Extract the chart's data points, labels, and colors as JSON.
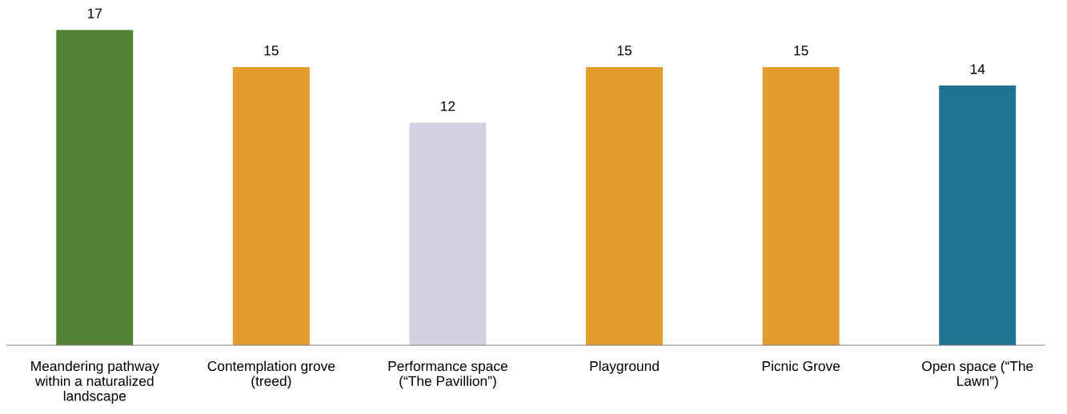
{
  "chart_data": {
    "type": "bar",
    "categories": [
      "Meandering pathway\nwithin a naturalized\nlandscape",
      "Contemplation grove\n(treed)",
      "Performance space\n(“The Pavillion”)",
      "Playground",
      "Picnic Grove",
      "Open space (“The\nLawn”)"
    ],
    "values": [
      17,
      15,
      12,
      15,
      15,
      14
    ],
    "colors": [
      "#548235",
      "#e39d2f",
      "#d3d1e0",
      "#e39d2f",
      "#e39d2f",
      "#1f7391"
    ],
    "data_labels": true
  }
}
